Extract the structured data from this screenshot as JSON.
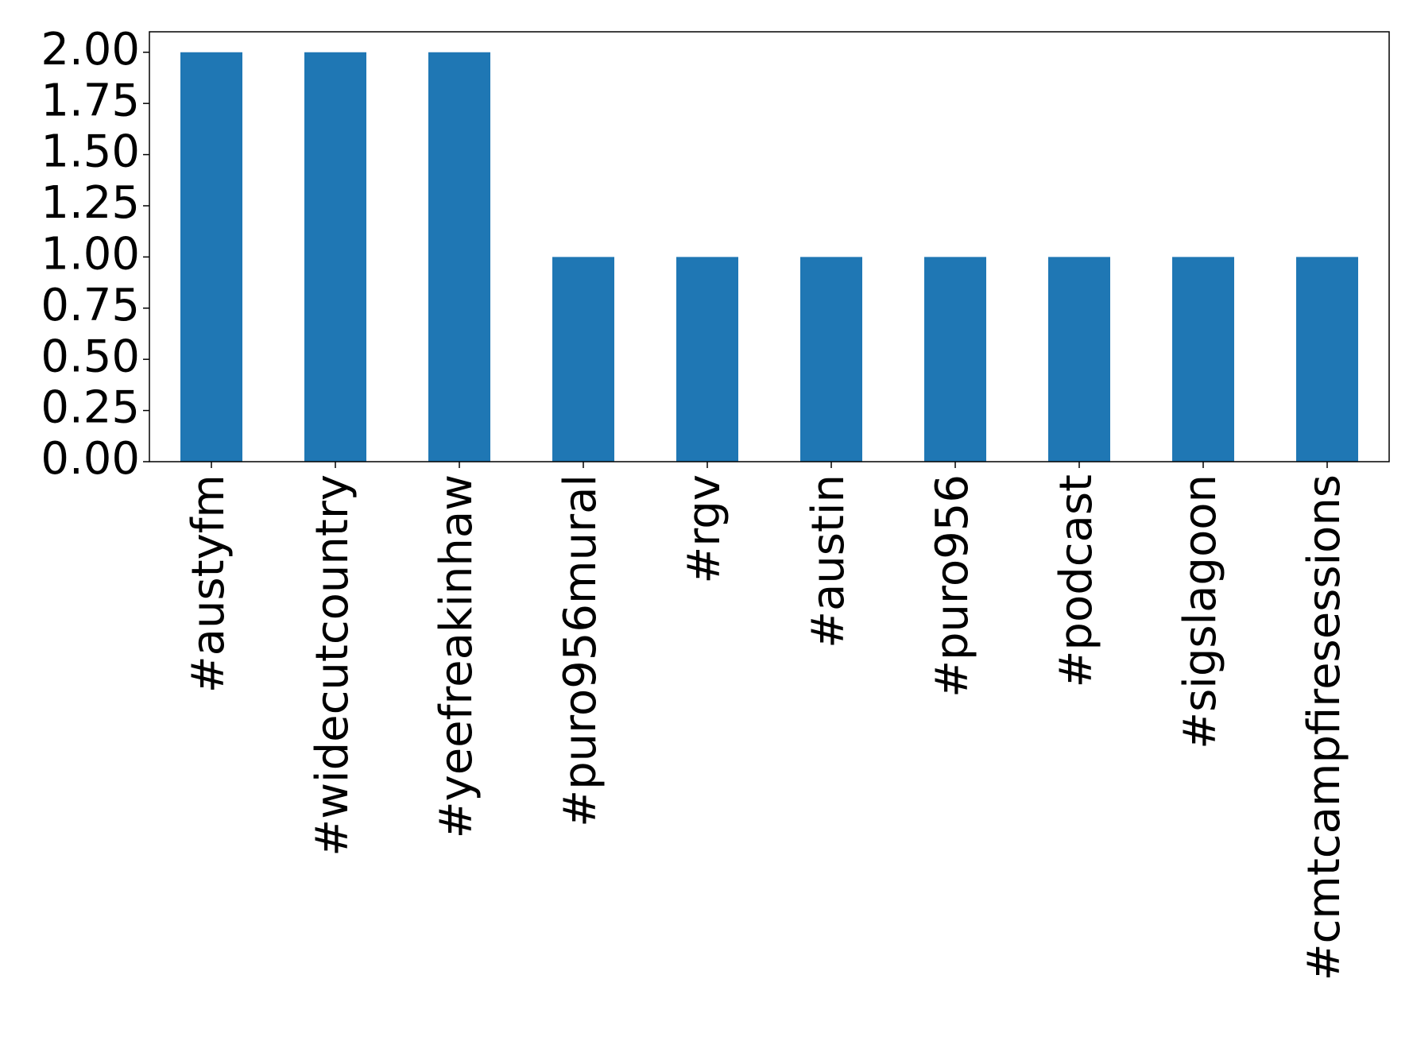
{
  "chart_data": {
    "type": "bar",
    "categories": [
      "#austyfm",
      "#widecutcountry",
      "#yeefreakinhaw",
      "#puro956mural",
      "#rgv",
      "#austin",
      "#puro956",
      "#podcast",
      "#sigslagoon",
      "#cmtcampfiresessions"
    ],
    "values": [
      2,
      2,
      2,
      1,
      1,
      1,
      1,
      1,
      1,
      1
    ],
    "color": "#1f77b4",
    "ylim": [
      0,
      2.1
    ],
    "yticks": [
      {
        "value": 0,
        "label": "0.00"
      },
      {
        "value": 0.25,
        "label": "0.25"
      },
      {
        "value": 0.5,
        "label": "0.50"
      },
      {
        "value": 0.75,
        "label": "0.75"
      },
      {
        "value": 1,
        "label": "1.00"
      },
      {
        "value": 1.25,
        "label": "1.25"
      },
      {
        "value": 1.5,
        "label": "1.50"
      },
      {
        "value": 1.75,
        "label": "1.75"
      },
      {
        "value": 2,
        "label": "2.00"
      }
    ],
    "grid": false
  }
}
